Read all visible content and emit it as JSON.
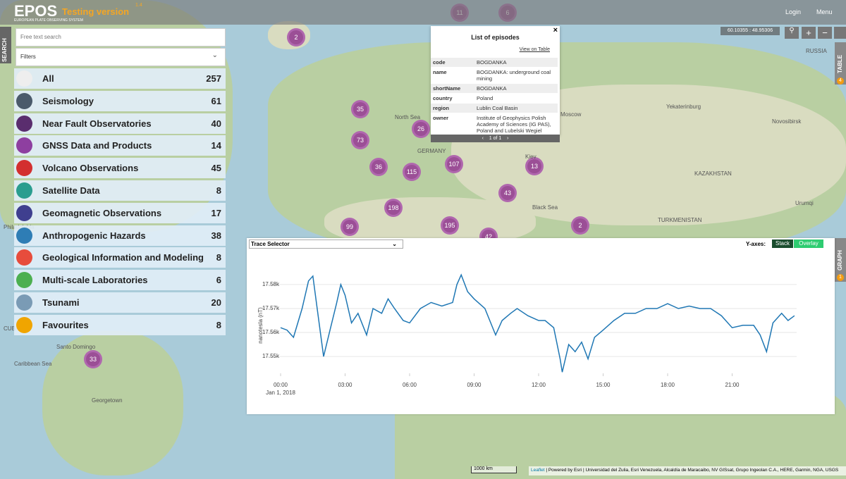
{
  "header": {
    "logo": "EPOS",
    "logo_subtitle": "EUROPEAN PLATE OBSERVING SYSTEM",
    "version": "Testing version",
    "version_number": "1.4",
    "login": "Login",
    "menu": "Menu"
  },
  "search": {
    "tab": "SEARCH",
    "placeholder": "Free text search",
    "filters": "Filters",
    "categories": [
      {
        "name": "All",
        "count": "257"
      },
      {
        "name": "Seismology",
        "count": "61"
      },
      {
        "name": "Near Fault Observatories",
        "count": "40"
      },
      {
        "name": "GNSS Data and Products",
        "count": "14"
      },
      {
        "name": "Volcano Observations",
        "count": "45"
      },
      {
        "name": "Satellite Data",
        "count": "8"
      },
      {
        "name": "Geomagnetic Observations",
        "count": "17"
      },
      {
        "name": "Anthropogenic Hazards",
        "count": "38"
      },
      {
        "name": "Geological Information and Modeling",
        "count": "8"
      },
      {
        "name": "Multi-scale Laboratories",
        "count": "6"
      },
      {
        "name": "Tsunami",
        "count": "20"
      },
      {
        "name": "Favourites",
        "count": "8"
      }
    ]
  },
  "map": {
    "coordinates": "60.10355 : 48.95306",
    "clusters": [
      "11",
      "6",
      "2",
      "35",
      "26",
      "73",
      "36",
      "115",
      "107",
      "13",
      "43",
      "198",
      "99",
      "195",
      "42",
      "2",
      "33"
    ],
    "labels": [
      "RUSSIA",
      "Moscow",
      "Yekaterinburg",
      "Novosibirsk",
      "KAZAKHSTAN",
      "Kiev",
      "TURKMENISTAN",
      "GERMANY",
      "North Sea",
      "Black Sea",
      "Georgetown",
      "Santo Domingo",
      "Caribbean Sea",
      "Philadelphia",
      "CUBA",
      "Urumqi"
    ],
    "scale": "1000 km",
    "attribution_leaflet": "Leaflet",
    "attribution": "| Powered by Esri | Universidad del Zulia, Esri Venezuela, Alcaldía de Maracaibo, NV GISsat, Grupo Ingeolan C.A., HERE, Garmin, NGA, USGS"
  },
  "popup": {
    "title": "List of episodes",
    "view_on_table": "View on Table",
    "close": "×",
    "rows": [
      [
        "code",
        "BOGDANKA"
      ],
      [
        "name",
        "BOGDANKA: underground coal mining"
      ],
      [
        "shortName",
        "BOGDANKA"
      ],
      [
        "country",
        "Poland"
      ],
      [
        "region",
        "Lublin Coal Basin"
      ],
      [
        "owner",
        "Institute of Geophysics Polish Academy of Sciences (IG PAS), Poland and Lubelski Wegiel \"Bogdanka\" SA, Poland"
      ]
    ],
    "pager": "1 of 1"
  },
  "side_tabs": {
    "table": "TABLE",
    "table_badge": "4",
    "graph": "GRAPH",
    "graph_badge": "1"
  },
  "graph": {
    "trace_selector": "Trace Selector",
    "y_axes_label": "Y-axes:",
    "stack": "Stack",
    "overlay": "Overlay"
  },
  "chart_data": {
    "type": "line",
    "y_label": "nanotesla (nT)",
    "x_date_label": "Jan 1, 2018",
    "color": "#1f77b4",
    "grid": true,
    "xlim": [
      0,
      24
    ],
    "ylim": [
      17543,
      17587
    ],
    "xticks": [
      {
        "value": 0,
        "label": "00:00"
      },
      {
        "value": 3,
        "label": "03:00"
      },
      {
        "value": 6,
        "label": "06:00"
      },
      {
        "value": 9,
        "label": "09:00"
      },
      {
        "value": 12,
        "label": "12:00"
      },
      {
        "value": 15,
        "label": "15:00"
      },
      {
        "value": 18,
        "label": "18:00"
      },
      {
        "value": 21,
        "label": "21:00"
      }
    ],
    "yticks": [
      {
        "value": 17550,
        "label": "17.55k"
      },
      {
        "value": 17560,
        "label": "17.56k"
      },
      {
        "value": 17570,
        "label": "17.57k"
      },
      {
        "value": 17580,
        "label": "17.58k"
      }
    ],
    "x": [
      0,
      0.3,
      0.6,
      1.0,
      1.3,
      1.5,
      1.7,
      2.0,
      2.3,
      2.6,
      2.8,
      3.0,
      3.3,
      3.6,
      4.0,
      4.3,
      4.7,
      5.0,
      5.3,
      5.7,
      6.0,
      6.5,
      7.0,
      7.5,
      8.0,
      8.2,
      8.4,
      8.7,
      9.0,
      9.5,
      10.0,
      10.3,
      10.7,
      11.0,
      11.5,
      12.0,
      12.3,
      12.7,
      13.0,
      13.1,
      13.4,
      13.7,
      14.0,
      14.3,
      14.6,
      15.0,
      15.5,
      16.0,
      16.5,
      17.0,
      17.5,
      18.0,
      18.5,
      19.0,
      19.5,
      20.0,
      20.5,
      21.0,
      21.5,
      22.0,
      22.3,
      22.6,
      22.9,
      23.3,
      23.6,
      23.9
    ],
    "values": [
      17562,
      17561,
      17558,
      17570,
      17581.5,
      17583.5,
      17570,
      17550,
      17561,
      17572,
      17580,
      17575.5,
      17564,
      17568,
      17559,
      17570,
      17568,
      17574,
      17570,
      17565,
      17564,
      17570,
      17572.5,
      17571,
      17572.5,
      17580,
      17584,
      17577,
      17574,
      17570,
      17559,
      17565,
      17568,
      17570,
      17567,
      17565,
      17565,
      17562,
      17549,
      17543.5,
      17555,
      17552,
      17556,
      17549,
      17558,
      17561,
      17565,
      17568,
      17568,
      17570,
      17570,
      17572,
      17570,
      17571,
      17570,
      17570,
      17567,
      17562,
      17563,
      17563,
      17559,
      17552,
      17564,
      17568,
      17565,
      17567
    ]
  }
}
